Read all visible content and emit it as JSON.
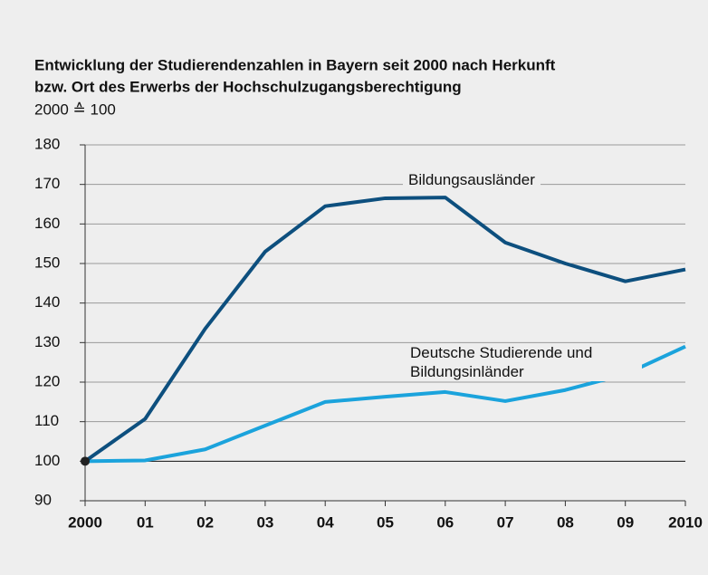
{
  "chart_data": {
    "type": "line",
    "title": [
      "Entwicklung der Studierendenzahlen in Bayern seit 2000 nach Herkunft",
      "bzw. Ort des Erwerbs der Hochschulzugangsberechtigung"
    ],
    "subtitle": "2000 ≙ 100",
    "categories": [
      "2000",
      "01",
      "02",
      "03",
      "04",
      "05",
      "06",
      "07",
      "08",
      "09",
      "2010"
    ],
    "series": [
      {
        "name": "Bildungsausländer",
        "color": "#0d4f7e",
        "values": [
          100,
          110.7,
          133.5,
          153,
          164.5,
          166.5,
          166.7,
          155.3,
          150,
          145.5,
          148.5
        ]
      },
      {
        "name": "Deutsche Studierende und Bildungsinländer",
        "color": "#1ba3dc",
        "values": [
          100,
          100.2,
          103,
          109,
          115,
          116.3,
          117.5,
          115.2,
          118,
          122,
          129
        ]
      }
    ],
    "ylim": [
      90,
      180
    ],
    "yticks": [
      90,
      100,
      110,
      120,
      130,
      140,
      150,
      160,
      170,
      180
    ],
    "grid": true,
    "reference_line": 100
  }
}
